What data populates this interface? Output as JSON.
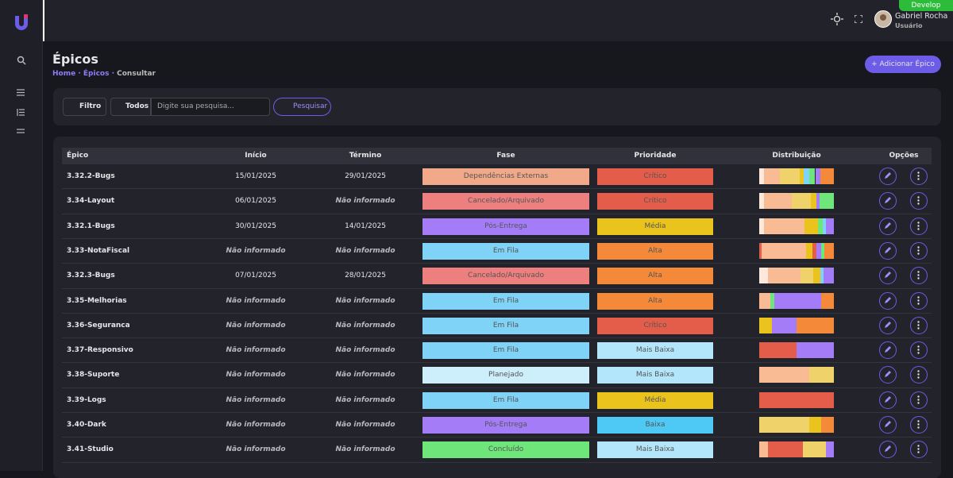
{
  "header": {
    "environment": "Develop",
    "user_name": "Gabriel Rocha",
    "user_role": "Usuário"
  },
  "page": {
    "title": "Épicos",
    "breadcrumb": [
      "Home",
      "Épicos",
      "Consultar"
    ],
    "add_button": "Adicionar Épico"
  },
  "filter": {
    "filter_button": "Filtro",
    "scope": "Todos",
    "search_placeholder": "Digite sua pesquisa...",
    "search_button": "Pesquisar"
  },
  "table": {
    "columns": [
      "Épico",
      "Início",
      "Término",
      "Fase",
      "Prioridade",
      "Distribuição",
      "Opções"
    ],
    "rows": [
      {
        "epic": "3.32.2-Bugs",
        "start": "15/01/2025",
        "end": "29/01/2025",
        "phase": "Dependências Externas",
        "phase_color": "#f2a98a",
        "priority": "Crítico",
        "priority_color": "#e35d4a",
        "distribution": [
          {
            "color": "#fde8dc",
            "value": 5
          },
          {
            "color": "#f9bb93",
            "value": 16
          },
          {
            "color": "#efd36a",
            "value": 20
          },
          {
            "color": "#eac31c",
            "value": 4
          },
          {
            "color": "#7fd3f7",
            "value": 6
          },
          {
            "color": "#6ee67a",
            "value": 6
          },
          {
            "color": "#a57cf7",
            "value": 5
          },
          {
            "color": "#f5893a",
            "value": 14
          }
        ]
      },
      {
        "epic": "3.34-Layout",
        "start": "06/01/2025",
        "end": "Não informado",
        "phase": "Cancelado/Arquivado",
        "phase_color": "#ee7f7f",
        "priority": "Crítico",
        "priority_color": "#e35d4a",
        "distribution": [
          {
            "color": "#fde8dc",
            "value": 6
          },
          {
            "color": "#f9bb93",
            "value": 34
          },
          {
            "color": "#efd36a",
            "value": 24
          },
          {
            "color": "#eac31c",
            "value": 6
          },
          {
            "color": "#a57cf7",
            "value": 4
          },
          {
            "color": "#6ee67a",
            "value": 18
          }
        ]
      },
      {
        "epic": "3.32.1-Bugs",
        "start": "30/01/2025",
        "end": "14/01/2025",
        "phase": "Pós-Entrega",
        "phase_color": "#a57cf7",
        "priority": "Média",
        "priority_color": "#eac31c",
        "distribution": [
          {
            "color": "#fde8dc",
            "value": 6
          },
          {
            "color": "#f9bb93",
            "value": 50
          },
          {
            "color": "#eac31c",
            "value": 16
          },
          {
            "color": "#6ee67a",
            "value": 6
          },
          {
            "color": "#7fd3f7",
            "value": 4
          },
          {
            "color": "#a57cf7",
            "value": 10
          }
        ]
      },
      {
        "epic": "3.33-NotaFiscal",
        "start": "Não informado",
        "end": "Não informado",
        "phase": "Em Fila",
        "phase_color": "#7fd3f7",
        "priority": "Alta",
        "priority_color": "#f5893a",
        "distribution": [
          {
            "color": "#e35d4a",
            "value": 3
          },
          {
            "color": "#f9bb93",
            "value": 55
          },
          {
            "color": "#eac31c",
            "value": 8
          },
          {
            "color": "#e35d4a",
            "value": 4
          },
          {
            "color": "#a57cf7",
            "value": 6
          },
          {
            "color": "#6ee67a",
            "value": 4
          },
          {
            "color": "#f5893a",
            "value": 12
          }
        ]
      },
      {
        "epic": "3.32.3-Bugs",
        "start": "07/01/2025",
        "end": "28/01/2025",
        "phase": "Cancelado/Arquivado",
        "phase_color": "#ee7f7f",
        "priority": "Alta",
        "priority_color": "#f5893a",
        "distribution": [
          {
            "color": "#fde8dc",
            "value": 10
          },
          {
            "color": "#f9bb93",
            "value": 38
          },
          {
            "color": "#efd36a",
            "value": 14
          },
          {
            "color": "#eac31c",
            "value": 8
          },
          {
            "color": "#7fd3f7",
            "value": 4
          },
          {
            "color": "#a57cf7",
            "value": 12
          }
        ]
      },
      {
        "epic": "3.35-Melhorias",
        "start": "Não informado",
        "end": "Não informado",
        "phase": "Em Fila",
        "phase_color": "#7fd3f7",
        "priority": "Alta",
        "priority_color": "#f5893a",
        "distribution": [
          {
            "color": "#f9bb93",
            "value": 14
          },
          {
            "color": "#6ee67a",
            "value": 5
          },
          {
            "color": "#a57cf7",
            "value": 60
          },
          {
            "color": "#f5893a",
            "value": 16
          }
        ]
      },
      {
        "epic": "3.36-Seguranca",
        "start": "Não informado",
        "end": "Não informado",
        "phase": "Em Fila",
        "phase_color": "#7fd3f7",
        "priority": "Crítico",
        "priority_color": "#e35d4a",
        "distribution": [
          {
            "color": "#eac31c",
            "value": 17
          },
          {
            "color": "#a57cf7",
            "value": 33
          },
          {
            "color": "#f5893a",
            "value": 50
          }
        ]
      },
      {
        "epic": "3.37-Responsivo",
        "start": "Não informado",
        "end": "Não informado",
        "phase": "Em Fila",
        "phase_color": "#7fd3f7",
        "priority": "Mais Baixa",
        "priority_color": "#b3e6fb",
        "distribution": [
          {
            "color": "#e35d4a",
            "value": 50
          },
          {
            "color": "#a57cf7",
            "value": 50
          }
        ]
      },
      {
        "epic": "3.38-Suporte",
        "start": "Não informado",
        "end": "Não informado",
        "phase": "Planejado",
        "phase_color": "#cdeefb",
        "priority": "Mais Baixa",
        "priority_color": "#b3e6fb",
        "distribution": [
          {
            "color": "#f9bb93",
            "value": 67
          },
          {
            "color": "#efd36a",
            "value": 33
          }
        ]
      },
      {
        "epic": "3.39-Logs",
        "start": "Não informado",
        "end": "Não informado",
        "phase": "Em Fila",
        "phase_color": "#7fd3f7",
        "priority": "Média",
        "priority_color": "#eac31c",
        "distribution": [
          {
            "color": "#e35d4a",
            "value": 100
          }
        ]
      },
      {
        "epic": "3.40-Dark",
        "start": "Não informado",
        "end": "Não informado",
        "phase": "Pós-Entrega",
        "phase_color": "#a57cf7",
        "priority": "Baixa",
        "priority_color": "#4ec8f5",
        "distribution": [
          {
            "color": "#efd36a",
            "value": 67
          },
          {
            "color": "#eac31c",
            "value": 16
          },
          {
            "color": "#f5893a",
            "value": 17
          }
        ]
      },
      {
        "epic": "3.41-Studio",
        "start": "Não informado",
        "end": "Não informado",
        "phase": "Concluído",
        "phase_color": "#6ee67a",
        "priority": "Mais Baixa",
        "priority_color": "#b3e6fb",
        "distribution": [
          {
            "color": "#f9bb93",
            "value": 12
          },
          {
            "color": "#e35d4a",
            "value": 47
          },
          {
            "color": "#efd36a",
            "value": 30
          },
          {
            "color": "#a57cf7",
            "value": 11
          }
        ]
      }
    ]
  }
}
